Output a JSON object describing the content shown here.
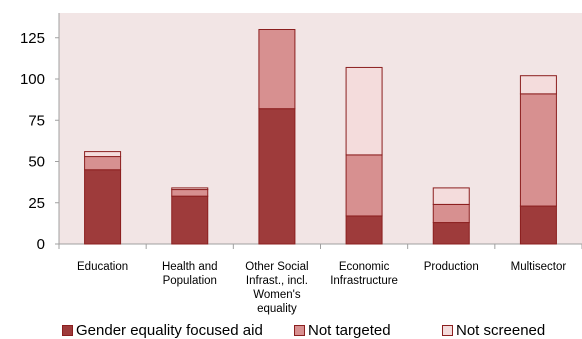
{
  "chart_data": {
    "type": "bar",
    "stacked": true,
    "categories": [
      "Education",
      "Health and Population",
      "Other Social Infrast., incl. Women's equality",
      "Economic Infrastructure",
      "Production",
      "Multisector"
    ],
    "series": [
      {
        "name": "Gender equality focused aid",
        "color": "#9e3b3b",
        "values": [
          45,
          29,
          82,
          17,
          13,
          23
        ]
      },
      {
        "name": "Not targeted",
        "color": "#d79090",
        "values": [
          8,
          4,
          48,
          37,
          11,
          68
        ]
      },
      {
        "name": "Not screened",
        "color": "#f4dcdc",
        "values": [
          3,
          1,
          0,
          53,
          10,
          11
        ]
      }
    ],
    "ylim": [
      0,
      140
    ],
    "yticks": [
      0,
      25,
      50,
      75,
      100,
      125
    ],
    "plot_background": "#f2e5e5",
    "bar_edge_color": "#8b1f1f",
    "grid": false,
    "legend_position": "bottom",
    "title": "",
    "xlabel": "",
    "ylabel": ""
  }
}
